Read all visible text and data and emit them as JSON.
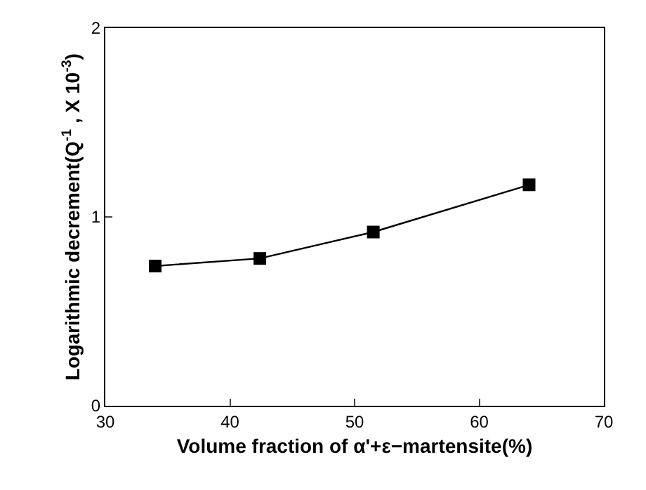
{
  "chart_data": {
    "type": "line",
    "xlabel": "Volume fraction of α'+ε−martensite(%)",
    "ylabel": "Logarithmic decrement(Q$^{-1}$ , X 10$^{-3}$)",
    "x": [
      34,
      42.4,
      51.5,
      64
    ],
    "series": [
      {
        "color": "#000000",
        "values": [
          0.74,
          0.78,
          0.92,
          1.17
        ]
      }
    ],
    "xlim": [
      30,
      70
    ],
    "xticks": [
      30,
      40,
      50,
      60,
      70
    ],
    "ylim": [
      0,
      2
    ],
    "yticks": [
      0,
      1,
      2
    ],
    "marker": "square",
    "line_style": "solid"
  }
}
